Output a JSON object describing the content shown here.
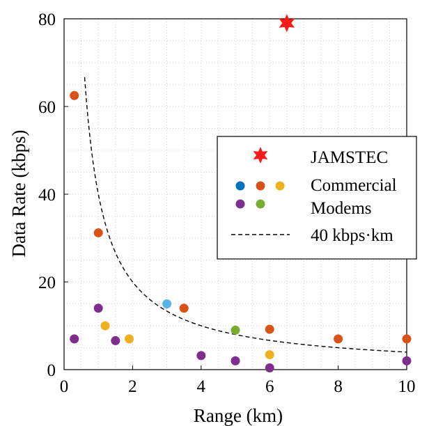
{
  "chart_data": {
    "type": "scatter",
    "xlabel": "Range (km)",
    "ylabel": "Data Rate (kbps)",
    "xlim": [
      0,
      10
    ],
    "ylim": [
      0,
      80
    ],
    "xticks": [
      0,
      2,
      4,
      6,
      8,
      10
    ],
    "yticks": [
      0,
      20,
      40,
      60,
      80
    ],
    "grid": "dotted, minor and major",
    "legend_position": "right-center",
    "series": [
      {
        "key": "jamstec",
        "marker": "star",
        "color": "#ff1a1a",
        "points": [
          [
            6.5,
            79
          ]
        ]
      },
      {
        "key": "commercial_blue",
        "marker": "circle",
        "color": "#56b4e9",
        "points": [
          [
            3.0,
            15.0
          ]
        ]
      },
      {
        "key": "commercial_orange",
        "marker": "circle",
        "color": "#d95319",
        "points": [
          [
            0.3,
            62.5
          ],
          [
            1.0,
            31.2
          ],
          [
            3.5,
            14.0
          ],
          [
            6.0,
            9.2
          ],
          [
            8.0,
            7.0
          ],
          [
            10.0,
            7.0
          ]
        ]
      },
      {
        "key": "commercial_yellow",
        "marker": "circle",
        "color": "#edb120",
        "points": [
          [
            1.2,
            10.0
          ],
          [
            1.9,
            7.0
          ],
          [
            6.0,
            3.4
          ]
        ]
      },
      {
        "key": "commercial_purple",
        "marker": "circle",
        "color": "#7e2f8e",
        "points": [
          [
            0.3,
            7.0
          ],
          [
            1.0,
            14.0
          ],
          [
            1.5,
            6.6
          ],
          [
            4.0,
            3.2
          ],
          [
            5.0,
            2.0
          ],
          [
            6.0,
            0.4
          ],
          [
            10.0,
            2.0
          ]
        ]
      },
      {
        "key": "commercial_green",
        "marker": "circle",
        "color": "#77ac30",
        "points": [
          [
            5.0,
            9.0
          ]
        ]
      },
      {
        "key": "reference_curve",
        "style": "dashed",
        "color": "#000000",
        "formula": "y = 40 / x",
        "x_range": [
          0.6,
          10
        ]
      }
    ],
    "legend": {
      "entries": [
        "JAMSTEC",
        "Commercial",
        "Modems",
        "40 kbps·km"
      ],
      "marker_colors": [
        "#ff1a1a",
        "#0072bd",
        "#d95319",
        "#edb120",
        "#7e2f8e",
        "#77ac30"
      ]
    }
  }
}
